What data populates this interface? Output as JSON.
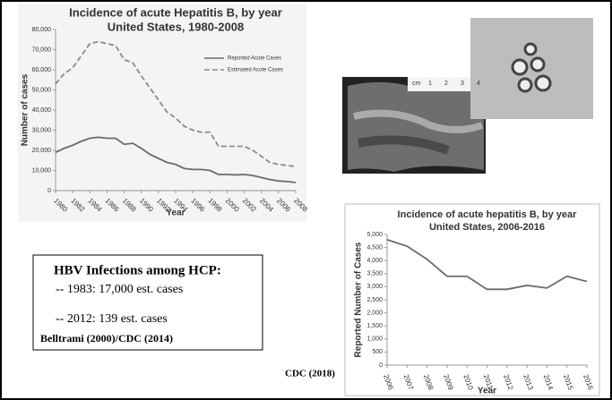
{
  "chart_data": [
    {
      "type": "line",
      "title": "Incidence of acute Hepatitis B, by year",
      "subtitle": "United States, 1980-2008",
      "x_label": "Year",
      "y_label": "Number of cases",
      "x": [
        1980,
        1981,
        1982,
        1983,
        1984,
        1985,
        1986,
        1987,
        1988,
        1989,
        1990,
        1991,
        1992,
        1993,
        1994,
        1995,
        1996,
        1997,
        1998,
        1999,
        2000,
        2001,
        2002,
        2003,
        2004,
        2005,
        2006,
        2007,
        2008
      ],
      "series": [
        {
          "name": "Reported Acute Cases",
          "color": "#6b6b6b",
          "line_style": "solid",
          "values": [
            19000,
            21000,
            22500,
            24500,
            26000,
            26500,
            26000,
            26000,
            23000,
            23500,
            21000,
            18000,
            16000,
            14000,
            13000,
            11000,
            10500,
            10500,
            10000,
            8000,
            8000,
            7800,
            8000,
            7500,
            6500,
            5500,
            4800,
            4500,
            4000
          ]
        },
        {
          "name": "Estimated Acute Cases",
          "color": "#8a8a8a",
          "line_style": "dashed",
          "values": [
            53000,
            58000,
            61000,
            67000,
            73000,
            74000,
            73000,
            72000,
            65000,
            63500,
            57000,
            51000,
            45000,
            39000,
            36000,
            32000,
            30000,
            29000,
            29000,
            22000,
            22000,
            22000,
            22000,
            20000,
            17000,
            14000,
            13000,
            12500,
            12000
          ]
        }
      ],
      "xlim": [
        1980,
        2008
      ],
      "xticks": [
        1980,
        1982,
        1984,
        1986,
        1988,
        1990,
        1992,
        1994,
        1996,
        1998,
        2000,
        2002,
        2004,
        2006,
        2008
      ],
      "ylim": [
        0,
        80000
      ],
      "yticks": [
        0,
        {
          "value": 10000,
          "label": "10,000"
        },
        {
          "value": 20000,
          "label": "20,000"
        },
        {
          "value": 30000,
          "label": "30,000"
        },
        {
          "value": 40000,
          "label": "40,000"
        },
        {
          "value": 50000,
          "label": "50,000"
        },
        {
          "value": 60000,
          "label": "60,000"
        },
        {
          "value": 70000,
          "label": "70,000"
        },
        {
          "value": 80000,
          "label": "80,000"
        }
      ],
      "legend": "upper right"
    },
    {
      "type": "line",
      "title": "Incidence of acute hepatitis B, by year",
      "subtitle": "United States, 2006-2016",
      "x_label": "Year",
      "y_label": "Reported Number of Cases",
      "x": [
        2006,
        2007,
        2008,
        2009,
        2010,
        2011,
        2012,
        2013,
        2014,
        2015,
        2016
      ],
      "series": [
        {
          "color": "#6b6b6b",
          "line_style": "solid",
          "values": [
            4800,
            4550,
            4050,
            3400,
            3400,
            2900,
            2900,
            3050,
            2950,
            3400,
            3200
          ]
        }
      ],
      "xlim": [
        2006,
        2016
      ],
      "xticks": [
        2006,
        2007,
        2008,
        2009,
        2010,
        2011,
        2012,
        2013,
        2014,
        2015,
        2016
      ],
      "ylim": [
        0,
        5000
      ],
      "yticks": [
        0,
        500,
        {
          "value": 1000,
          "label": "1,000"
        },
        {
          "value": 1500,
          "label": "1,500"
        },
        {
          "value": 2000,
          "label": "2,000"
        },
        {
          "value": 2500,
          "label": "2,500"
        },
        {
          "value": 3000,
          "label": "3,000"
        },
        {
          "value": 3500,
          "label": "3,500"
        },
        {
          "value": 4000,
          "label": "4,000"
        },
        {
          "value": 4500,
          "label": "4,500"
        },
        {
          "value": 5000,
          "label": "5,000"
        }
      ]
    }
  ],
  "text_box": {
    "heading": "HBV Infections among HCP:",
    "lines": [
      "-- 1983: 17,000 est. cases",
      "-- 2012: 139 est. cases"
    ],
    "citation": "Belltrami (2000)/CDC (2014)"
  },
  "photo_scale": [
    "cm",
    "1",
    "2",
    "3",
    "4"
  ],
  "credit": "CDC (2018)"
}
